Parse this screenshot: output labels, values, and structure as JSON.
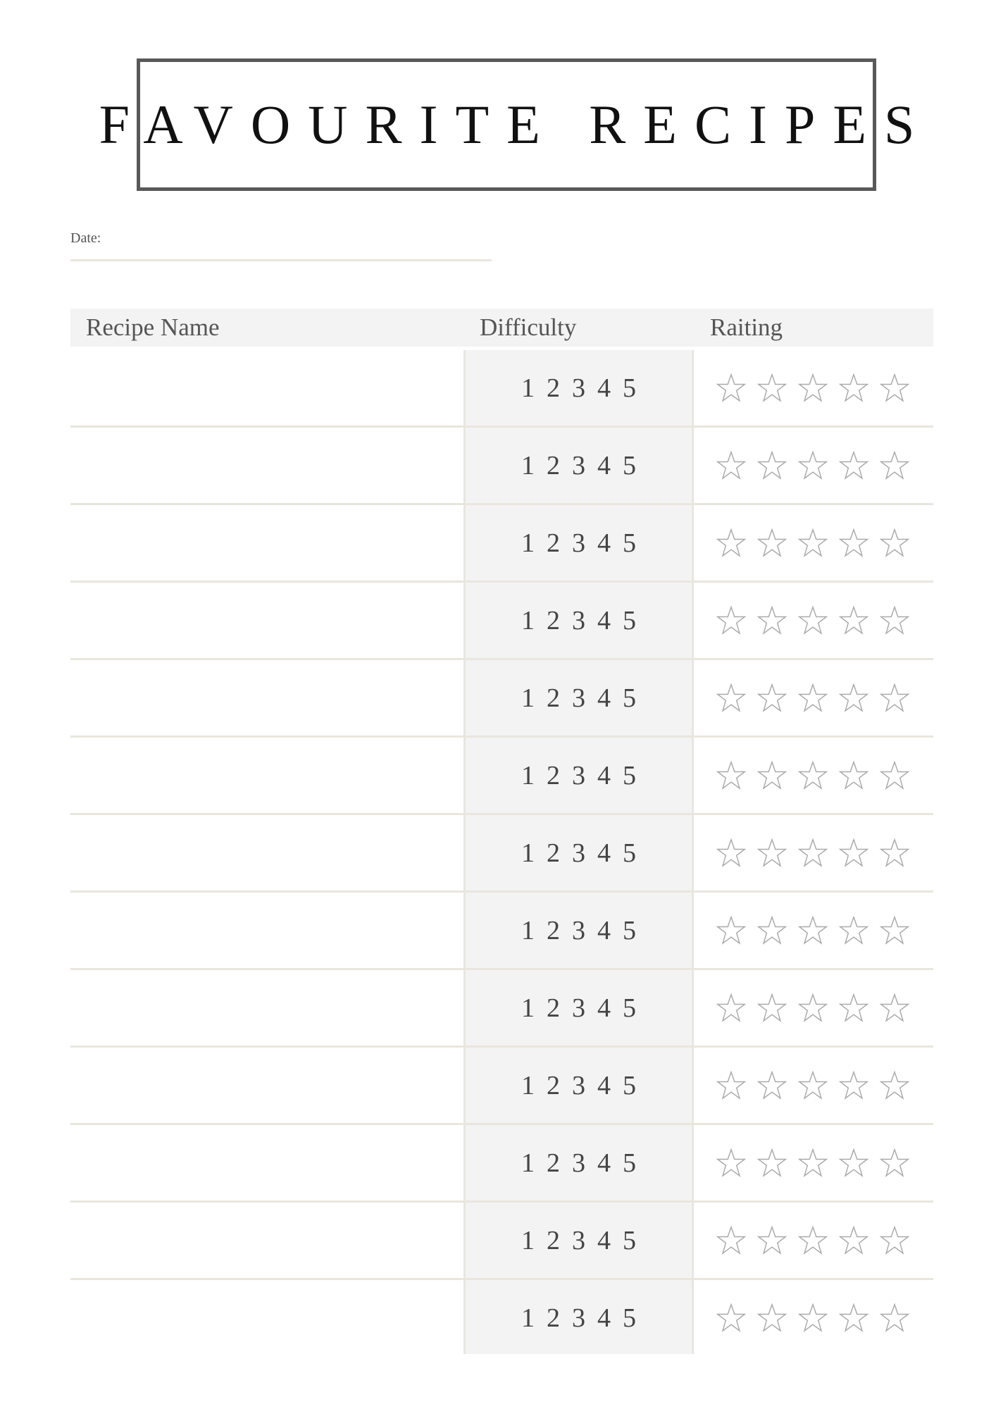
{
  "title": "FAVOURITE RECIPES",
  "date_label": "Date:",
  "table": {
    "headers": [
      "Recipe Name",
      "Difficulty",
      "Raiting"
    ],
    "difficulty_options": [
      "1",
      "2",
      "3",
      "4",
      "5"
    ],
    "rating_max_stars": 5,
    "row_count": 13,
    "rows": [
      {
        "recipe_name": "",
        "difficulty": null,
        "rating": 0
      },
      {
        "recipe_name": "",
        "difficulty": null,
        "rating": 0
      },
      {
        "recipe_name": "",
        "difficulty": null,
        "rating": 0
      },
      {
        "recipe_name": "",
        "difficulty": null,
        "rating": 0
      },
      {
        "recipe_name": "",
        "difficulty": null,
        "rating": 0
      },
      {
        "recipe_name": "",
        "difficulty": null,
        "rating": 0
      },
      {
        "recipe_name": "",
        "difficulty": null,
        "rating": 0
      },
      {
        "recipe_name": "",
        "difficulty": null,
        "rating": 0
      },
      {
        "recipe_name": "",
        "difficulty": null,
        "rating": 0
      },
      {
        "recipe_name": "",
        "difficulty": null,
        "rating": 0
      },
      {
        "recipe_name": "",
        "difficulty": null,
        "rating": 0
      },
      {
        "recipe_name": "",
        "difficulty": null,
        "rating": 0
      },
      {
        "recipe_name": "",
        "difficulty": null,
        "rating": 0
      }
    ]
  },
  "colors": {
    "border": "#595959",
    "rule": "#e9e6de",
    "shade": "#f3f3f3",
    "star_outline": "#aaaaaa"
  },
  "icons": {
    "rating": "star-outline-icon"
  }
}
